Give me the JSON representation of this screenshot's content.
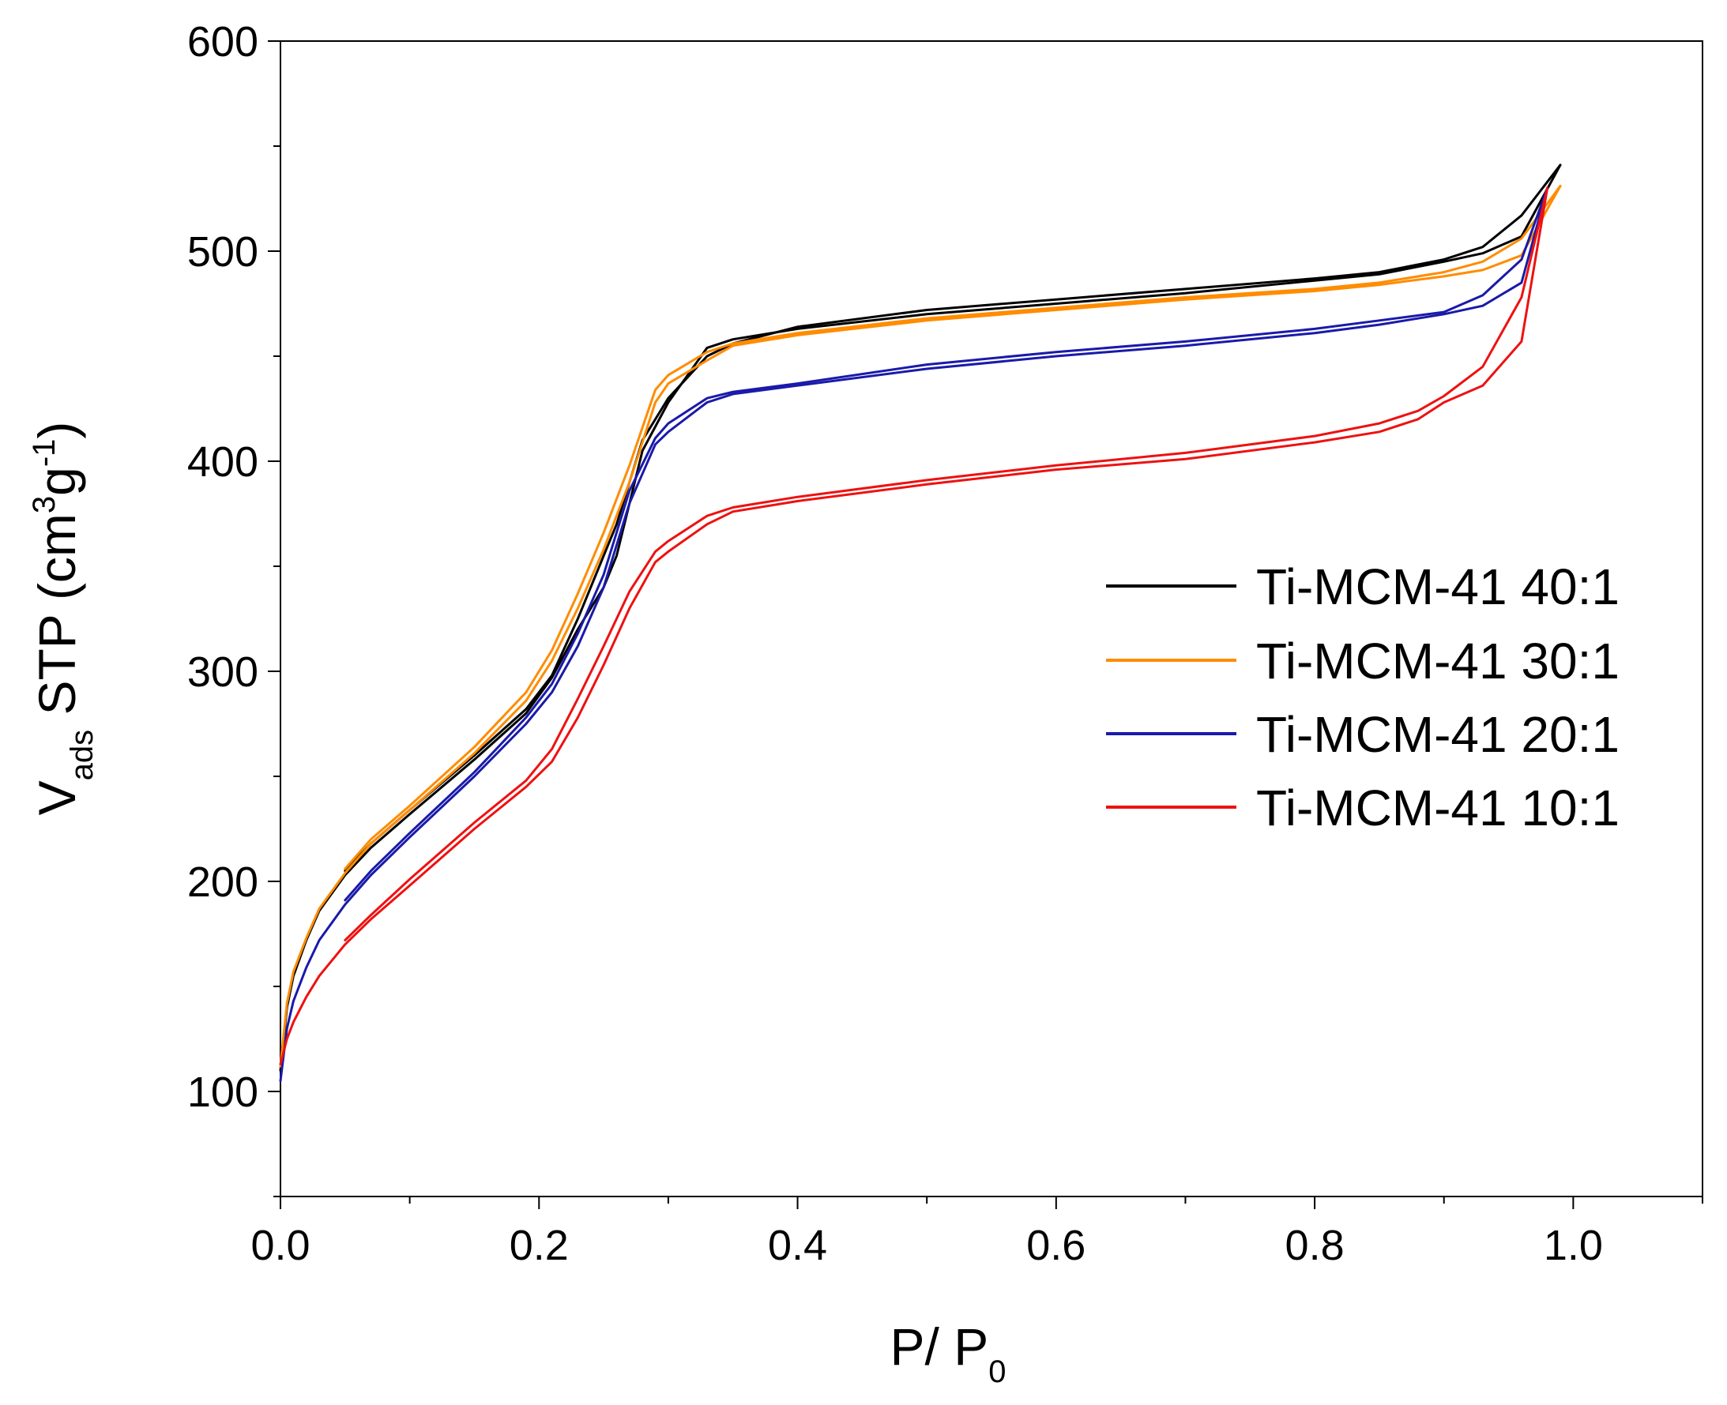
{
  "chart_data": {
    "type": "line",
    "title": "",
    "xlabel": {
      "main": "P/ P",
      "sub": "0"
    },
    "ylabel": {
      "main": "V",
      "sub": "ads",
      "mid": " STP (cm",
      "sup1": "3",
      "mid2": "g",
      "sup2": "-1",
      "end": ")"
    },
    "xlim": [
      0.0,
      1.1
    ],
    "ylim": [
      50,
      600
    ],
    "xticks": [
      0.0,
      0.2,
      0.4,
      0.6,
      0.8,
      1.0
    ],
    "xtick_labels": [
      "0.0",
      "0.2",
      "0.4",
      "0.6",
      "0.8",
      "1.0"
    ],
    "yticks": [
      100,
      200,
      300,
      400,
      500,
      600
    ],
    "ytick_labels": [
      "100",
      "200",
      "300",
      "400",
      "500",
      "600"
    ],
    "x_minor_step": 0.1,
    "y_minor_step": 50,
    "grid": false,
    "legend_position": "center-right",
    "series": [
      {
        "name": "Ti-MCM-41 40:1",
        "color": "#000000",
        "adsorption": [
          [
            0.0,
            110
          ],
          [
            0.005,
            140
          ],
          [
            0.01,
            155
          ],
          [
            0.02,
            172
          ],
          [
            0.03,
            186
          ],
          [
            0.05,
            203
          ],
          [
            0.07,
            216
          ],
          [
            0.1,
            232
          ],
          [
            0.15,
            258
          ],
          [
            0.19,
            280
          ],
          [
            0.21,
            297
          ],
          [
            0.23,
            320
          ],
          [
            0.25,
            340
          ],
          [
            0.26,
            355
          ],
          [
            0.28,
            405
          ],
          [
            0.3,
            428
          ],
          [
            0.33,
            454
          ],
          [
            0.35,
            458
          ],
          [
            0.4,
            463
          ],
          [
            0.5,
            470
          ],
          [
            0.6,
            475
          ],
          [
            0.7,
            480
          ],
          [
            0.8,
            486
          ],
          [
            0.85,
            489
          ],
          [
            0.9,
            495
          ],
          [
            0.93,
            499
          ],
          [
            0.96,
            507
          ],
          [
            0.99,
            541
          ]
        ],
        "desorption": [
          [
            0.99,
            541
          ],
          [
            0.96,
            517
          ],
          [
            0.93,
            502
          ],
          [
            0.9,
            496
          ],
          [
            0.85,
            490
          ],
          [
            0.8,
            487
          ],
          [
            0.7,
            482
          ],
          [
            0.6,
            477
          ],
          [
            0.5,
            472
          ],
          [
            0.4,
            464
          ],
          [
            0.35,
            456
          ],
          [
            0.33,
            450
          ],
          [
            0.3,
            430
          ],
          [
            0.28,
            410
          ],
          [
            0.27,
            390
          ],
          [
            0.26,
            370
          ],
          [
            0.25,
            355
          ],
          [
            0.23,
            325
          ],
          [
            0.21,
            298
          ],
          [
            0.19,
            282
          ],
          [
            0.15,
            260
          ],
          [
            0.1,
            234
          ],
          [
            0.07,
            218
          ],
          [
            0.05,
            205
          ]
        ]
      },
      {
        "name": "Ti-MCM-41 30:1",
        "color": "#ff8c00",
        "adsorption": [
          [
            0.0,
            112
          ],
          [
            0.005,
            142
          ],
          [
            0.01,
            157
          ],
          [
            0.02,
            173
          ],
          [
            0.03,
            187
          ],
          [
            0.05,
            204
          ],
          [
            0.07,
            218
          ],
          [
            0.1,
            234
          ],
          [
            0.15,
            261
          ],
          [
            0.19,
            286
          ],
          [
            0.21,
            305
          ],
          [
            0.23,
            330
          ],
          [
            0.25,
            358
          ],
          [
            0.27,
            390
          ],
          [
            0.29,
            428
          ],
          [
            0.3,
            437
          ],
          [
            0.33,
            448
          ],
          [
            0.35,
            455
          ],
          [
            0.4,
            460
          ],
          [
            0.5,
            467
          ],
          [
            0.6,
            472
          ],
          [
            0.7,
            477
          ],
          [
            0.8,
            481
          ],
          [
            0.85,
            484
          ],
          [
            0.9,
            488
          ],
          [
            0.93,
            491
          ],
          [
            0.96,
            498
          ],
          [
            0.99,
            531
          ]
        ],
        "desorption": [
          [
            0.99,
            531
          ],
          [
            0.96,
            506
          ],
          [
            0.93,
            495
          ],
          [
            0.9,
            490
          ],
          [
            0.85,
            485
          ],
          [
            0.8,
            482
          ],
          [
            0.7,
            478
          ],
          [
            0.6,
            473
          ],
          [
            0.5,
            468
          ],
          [
            0.4,
            461
          ],
          [
            0.35,
            456
          ],
          [
            0.33,
            452
          ],
          [
            0.3,
            441
          ],
          [
            0.29,
            434
          ],
          [
            0.27,
            398
          ],
          [
            0.25,
            366
          ],
          [
            0.23,
            337
          ],
          [
            0.21,
            310
          ],
          [
            0.19,
            290
          ],
          [
            0.15,
            264
          ],
          [
            0.1,
            236
          ],
          [
            0.07,
            220
          ],
          [
            0.05,
            206
          ]
        ]
      },
      {
        "name": "Ti-MCM-41 20:1",
        "color": "#1a1aaa",
        "adsorption": [
          [
            0.0,
            105
          ],
          [
            0.005,
            130
          ],
          [
            0.01,
            143
          ],
          [
            0.02,
            159
          ],
          [
            0.03,
            172
          ],
          [
            0.05,
            189
          ],
          [
            0.07,
            203
          ],
          [
            0.1,
            221
          ],
          [
            0.15,
            250
          ],
          [
            0.19,
            275
          ],
          [
            0.21,
            290
          ],
          [
            0.23,
            312
          ],
          [
            0.25,
            340
          ],
          [
            0.27,
            380
          ],
          [
            0.29,
            408
          ],
          [
            0.3,
            414
          ],
          [
            0.33,
            428
          ],
          [
            0.35,
            432
          ],
          [
            0.4,
            436
          ],
          [
            0.5,
            444
          ],
          [
            0.6,
            450
          ],
          [
            0.7,
            455
          ],
          [
            0.8,
            461
          ],
          [
            0.85,
            465
          ],
          [
            0.9,
            470
          ],
          [
            0.93,
            474
          ],
          [
            0.96,
            485
          ],
          [
            0.98,
            530
          ]
        ],
        "desorption": [
          [
            0.98,
            530
          ],
          [
            0.96,
            496
          ],
          [
            0.93,
            479
          ],
          [
            0.9,
            471
          ],
          [
            0.85,
            467
          ],
          [
            0.8,
            463
          ],
          [
            0.7,
            457
          ],
          [
            0.6,
            452
          ],
          [
            0.5,
            446
          ],
          [
            0.4,
            437
          ],
          [
            0.35,
            433
          ],
          [
            0.33,
            430
          ],
          [
            0.3,
            418
          ],
          [
            0.29,
            411
          ],
          [
            0.27,
            386
          ],
          [
            0.25,
            346
          ],
          [
            0.23,
            318
          ],
          [
            0.21,
            294
          ],
          [
            0.19,
            278
          ],
          [
            0.15,
            252
          ],
          [
            0.1,
            223
          ],
          [
            0.07,
            205
          ],
          [
            0.05,
            191
          ]
        ]
      },
      {
        "name": "Ti-MCM-41 10:1",
        "color": "#ee1111",
        "adsorption": [
          [
            0.0,
            113
          ],
          [
            0.005,
            125
          ],
          [
            0.01,
            133
          ],
          [
            0.02,
            145
          ],
          [
            0.03,
            155
          ],
          [
            0.05,
            170
          ],
          [
            0.07,
            182
          ],
          [
            0.1,
            198
          ],
          [
            0.15,
            225
          ],
          [
            0.19,
            245
          ],
          [
            0.21,
            257
          ],
          [
            0.23,
            278
          ],
          [
            0.25,
            303
          ],
          [
            0.27,
            330
          ],
          [
            0.29,
            352
          ],
          [
            0.3,
            357
          ],
          [
            0.33,
            370
          ],
          [
            0.35,
            376
          ],
          [
            0.4,
            381
          ],
          [
            0.5,
            389
          ],
          [
            0.6,
            396
          ],
          [
            0.7,
            401
          ],
          [
            0.8,
            409
          ],
          [
            0.85,
            414
          ],
          [
            0.88,
            420
          ],
          [
            0.9,
            428
          ],
          [
            0.93,
            436
          ],
          [
            0.96,
            457
          ],
          [
            0.98,
            530
          ]
        ],
        "desorption": [
          [
            0.98,
            530
          ],
          [
            0.96,
            478
          ],
          [
            0.93,
            445
          ],
          [
            0.9,
            431
          ],
          [
            0.88,
            424
          ],
          [
            0.85,
            418
          ],
          [
            0.8,
            412
          ],
          [
            0.7,
            404
          ],
          [
            0.6,
            398
          ],
          [
            0.5,
            391
          ],
          [
            0.4,
            383
          ],
          [
            0.35,
            378
          ],
          [
            0.33,
            374
          ],
          [
            0.3,
            362
          ],
          [
            0.29,
            357
          ],
          [
            0.27,
            338
          ],
          [
            0.25,
            312
          ],
          [
            0.23,
            287
          ],
          [
            0.21,
            263
          ],
          [
            0.19,
            248
          ],
          [
            0.15,
            228
          ],
          [
            0.1,
            201
          ],
          [
            0.07,
            184
          ],
          [
            0.05,
            172
          ]
        ]
      }
    ]
  }
}
